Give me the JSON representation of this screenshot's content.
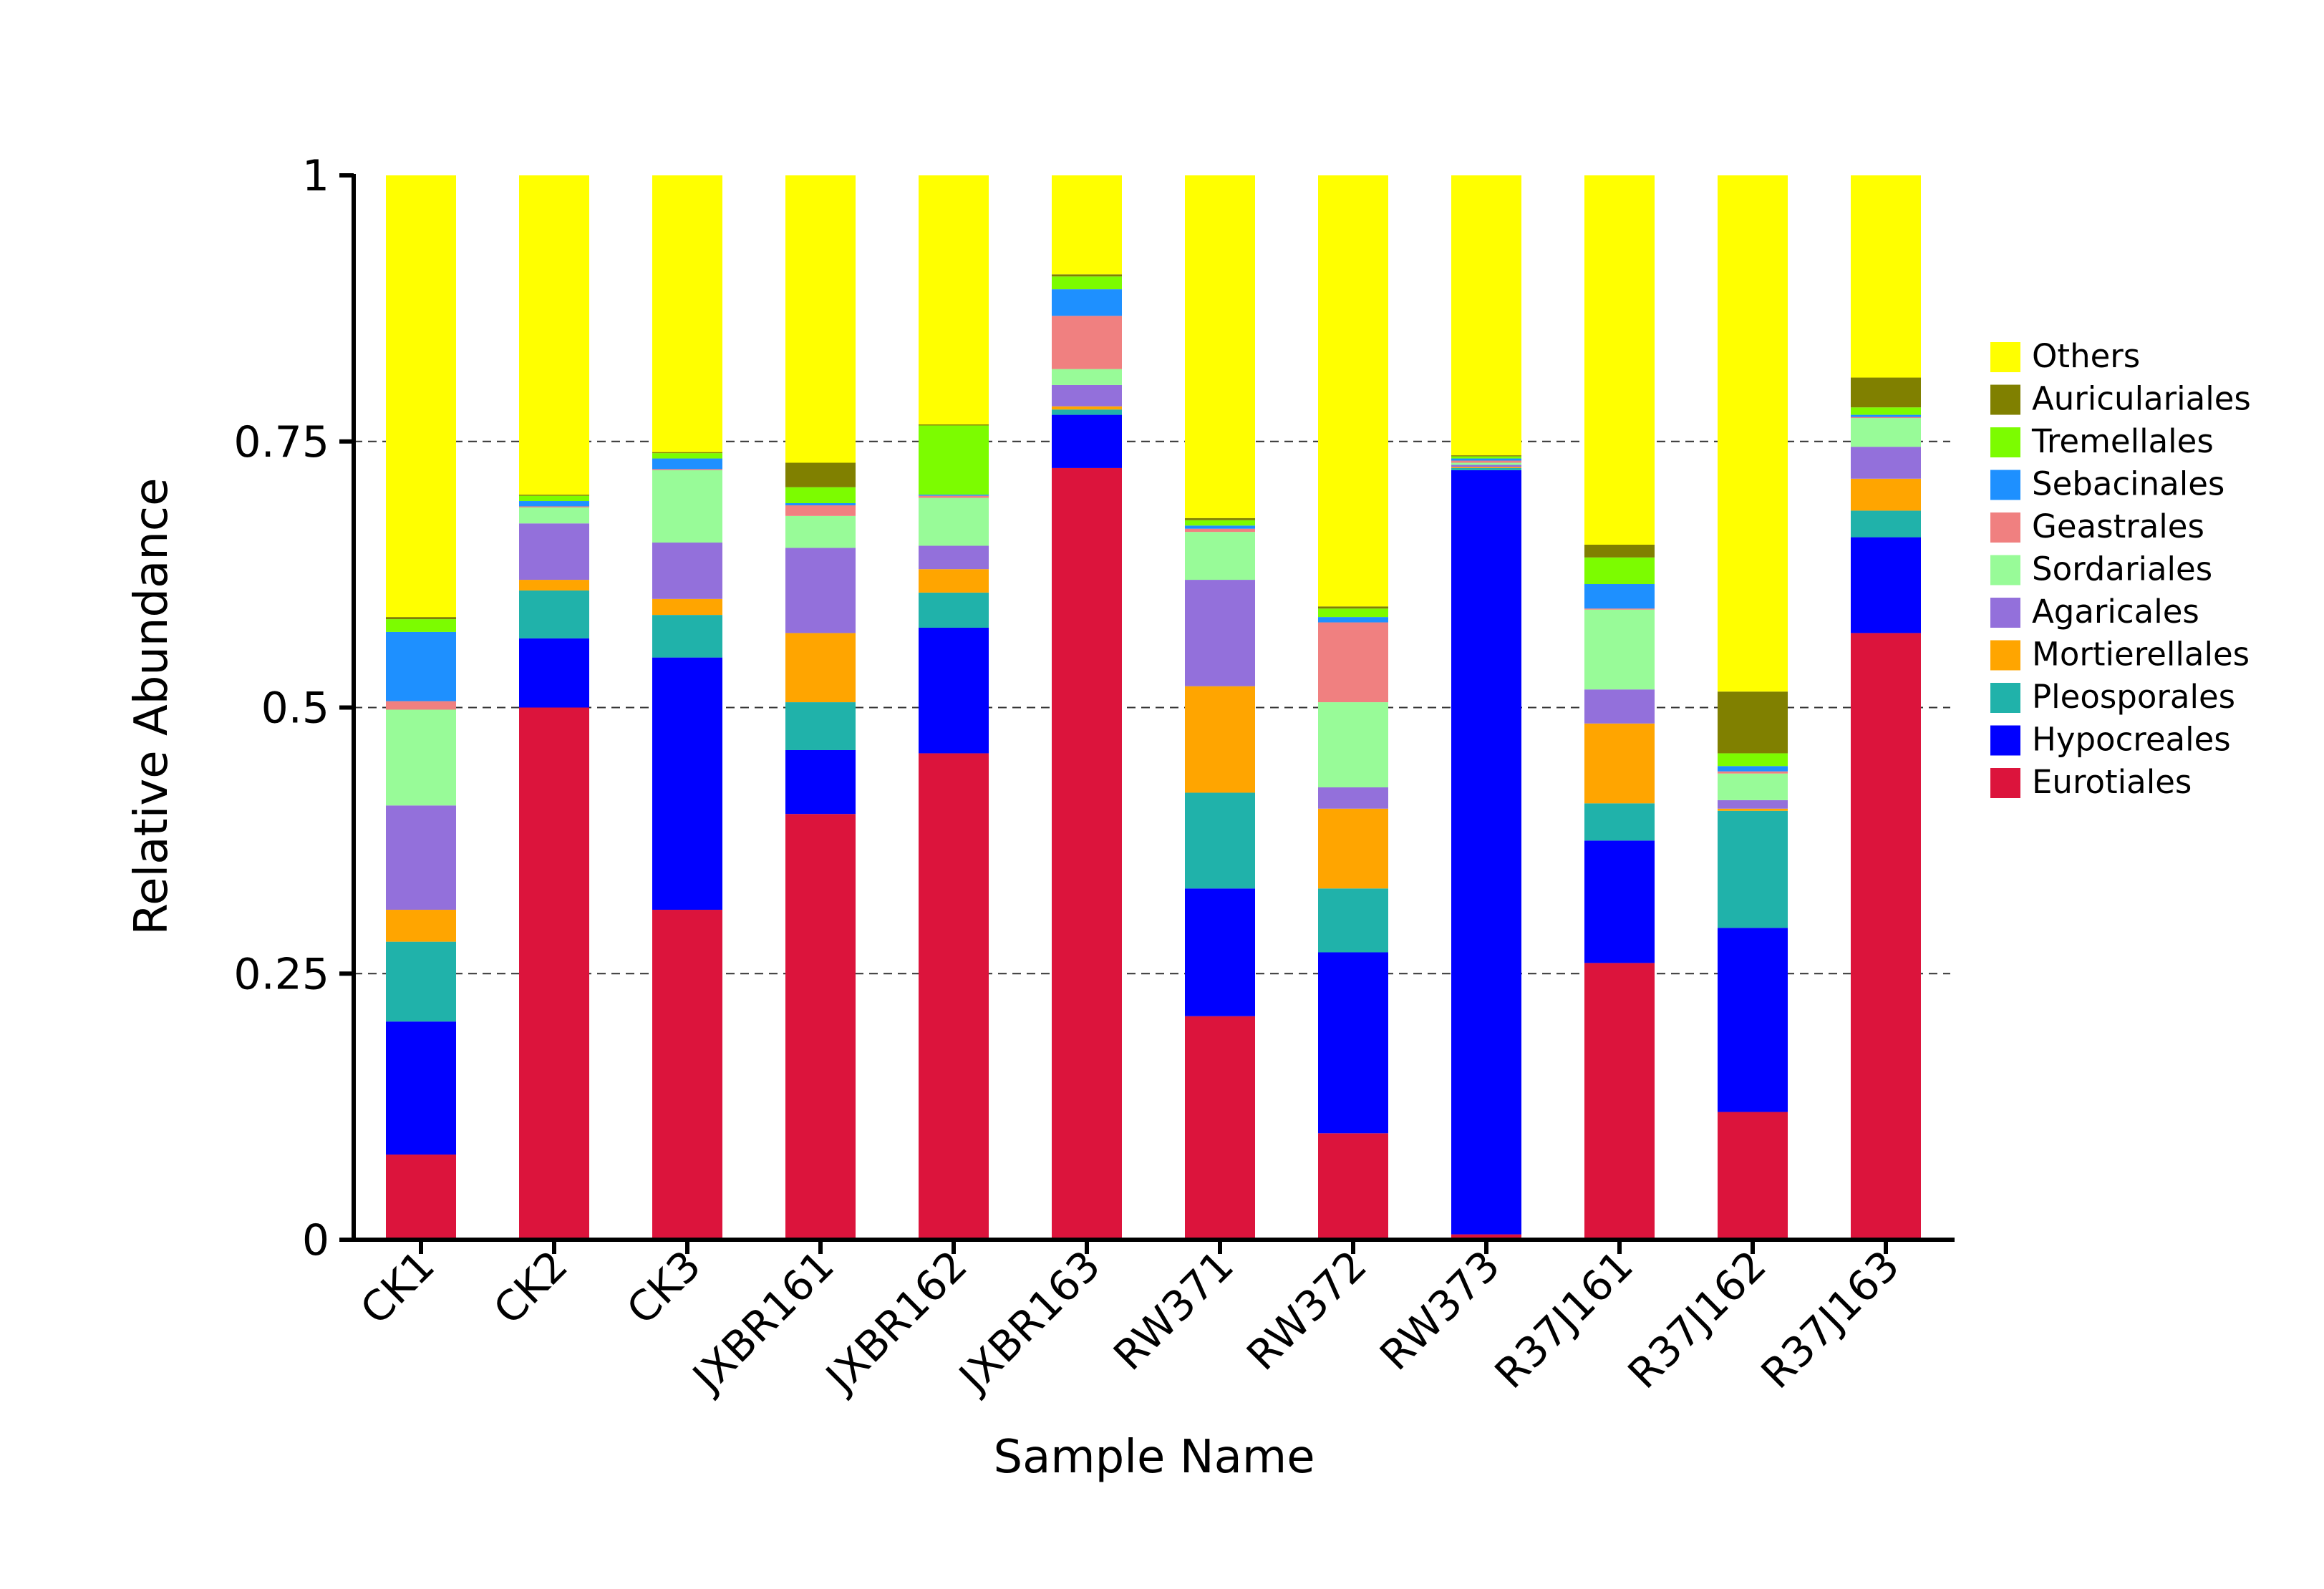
{
  "chart_data": {
    "type": "bar",
    "stacked": true,
    "xlabel": "Sample Name",
    "ylabel": "Relative Abundance",
    "ylim": [
      0,
      1
    ],
    "yticks": [
      0,
      0.25,
      0.5,
      0.75,
      1
    ],
    "ytick_labels": [
      "0",
      "0.25",
      "0.5",
      "0.75",
      "1"
    ],
    "grid": "horizontal dashed at 0.25, 0.5, 0.75",
    "legend_position": "right",
    "categories": [
      "CK1",
      "CK2",
      "CK3",
      "JXBR161",
      "JXBR162",
      "JXBR163",
      "RW371",
      "RW372",
      "RW373",
      "R37J161",
      "R37J162",
      "R37J163"
    ],
    "series": [
      {
        "name": "Eurotiales",
        "color": "#DC143C",
        "values": [
          0.08,
          0.5,
          0.31,
          0.4,
          0.457,
          0.725,
          0.21,
          0.1,
          0.005,
          0.26,
          0.12,
          0.57
        ]
      },
      {
        "name": "Hypocreales",
        "color": "#0000FF",
        "values": [
          0.125,
          0.065,
          0.237,
          0.06,
          0.118,
          0.05,
          0.12,
          0.17,
          0.718,
          0.115,
          0.173,
          0.09
        ]
      },
      {
        "name": "Pleosporales",
        "color": "#20B2AA",
        "values": [
          0.075,
          0.045,
          0.04,
          0.045,
          0.033,
          0.005,
          0.09,
          0.06,
          0.002,
          0.035,
          0.11,
          0.025
        ]
      },
      {
        "name": "Mortierellales",
        "color": "#FFA500",
        "values": [
          0.03,
          0.01,
          0.015,
          0.065,
          0.022,
          0.003,
          0.1,
          0.075,
          0.001,
          0.075,
          0.002,
          0.03
        ]
      },
      {
        "name": "Agaricales",
        "color": "#9370DB",
        "values": [
          0.098,
          0.053,
          0.053,
          0.08,
          0.022,
          0.02,
          0.1,
          0.02,
          0.002,
          0.032,
          0.008,
          0.03
        ]
      },
      {
        "name": "Sordariales",
        "color": "#98FB98",
        "values": [
          0.09,
          0.015,
          0.068,
          0.03,
          0.045,
          0.015,
          0.045,
          0.08,
          0.002,
          0.075,
          0.025,
          0.027
        ]
      },
      {
        "name": "Geastrales",
        "color": "#F08080",
        "values": [
          0.008,
          0.001,
          0.001,
          0.01,
          0.002,
          0.05,
          0.003,
          0.075,
          0.002,
          0.001,
          0.002,
          0.001
        ]
      },
      {
        "name": "Sebacinales",
        "color": "#1E90FF",
        "values": [
          0.065,
          0.005,
          0.01,
          0.002,
          0.001,
          0.025,
          0.003,
          0.005,
          0.002,
          0.023,
          0.005,
          0.002
        ]
      },
      {
        "name": "Tremellales",
        "color": "#7CFC00",
        "values": [
          0.012,
          0.005,
          0.005,
          0.015,
          0.065,
          0.012,
          0.005,
          0.008,
          0.002,
          0.025,
          0.012,
          0.007
        ]
      },
      {
        "name": "Auriculariales",
        "color": "#808000",
        "values": [
          0.002,
          0.001,
          0.001,
          0.023,
          0.001,
          0.002,
          0.002,
          0.002,
          0.001,
          0.012,
          0.058,
          0.028
        ]
      },
      {
        "name": "Others",
        "color": "#FFFF00",
        "values": [
          0.415,
          0.3,
          0.26,
          0.27,
          0.234,
          0.093,
          0.317,
          0.405,
          0.263,
          0.347,
          0.485,
          0.19
        ]
      }
    ]
  }
}
